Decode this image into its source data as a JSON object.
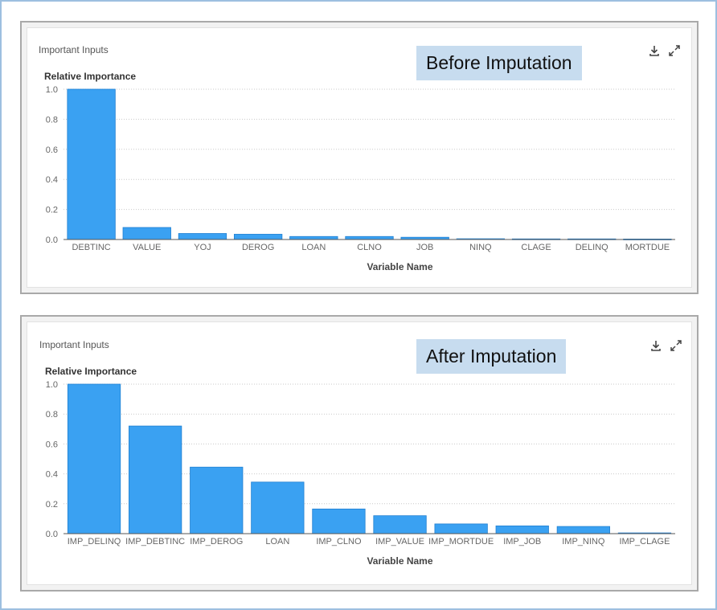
{
  "chart_data": [
    {
      "type": "bar",
      "panel_title": "Important Inputs",
      "overlay_label": "Before Imputation",
      "ylabel": "Relative Importance",
      "xlabel": "Variable Name",
      "ylim": [
        0,
        1.0
      ],
      "yticks": [
        "0.0",
        "0.2",
        "0.4",
        "0.6",
        "0.8",
        "1.0"
      ],
      "grid": true,
      "categories": [
        "DEBTINC",
        "VALUE",
        "YOJ",
        "DEROG",
        "LOAN",
        "CLNO",
        "JOB",
        "NINQ",
        "CLAGE",
        "DELINQ",
        "MORTDUE"
      ],
      "values": [
        1.0,
        0.08,
        0.04,
        0.035,
        0.02,
        0.02,
        0.015,
        0.005,
        0.004,
        0.004,
        0.003
      ],
      "bar_color": "#3aa1f2"
    },
    {
      "type": "bar",
      "panel_title": "Important Inputs",
      "overlay_label": "After Imputation",
      "ylabel": "Relative Importance",
      "xlabel": "Variable Name",
      "ylim": [
        0,
        1.0
      ],
      "yticks": [
        "0.0",
        "0.2",
        "0.4",
        "0.6",
        "0.8",
        "1.0"
      ],
      "grid": true,
      "categories": [
        "IMP_DELINQ",
        "IMP_DEBTINC",
        "IMP_DEROG",
        "LOAN",
        "IMP_CLNO",
        "IMP_VALUE",
        "IMP_MORTDUE",
        "IMP_JOB",
        "IMP_NINQ",
        "IMP_CLAGE"
      ],
      "values": [
        1.0,
        0.72,
        0.445,
        0.345,
        0.165,
        0.12,
        0.065,
        0.052,
        0.048,
        0.005
      ],
      "bar_color": "#3aa1f2"
    }
  ],
  "icons": {
    "download": "download-icon",
    "expand": "expand-icon"
  }
}
